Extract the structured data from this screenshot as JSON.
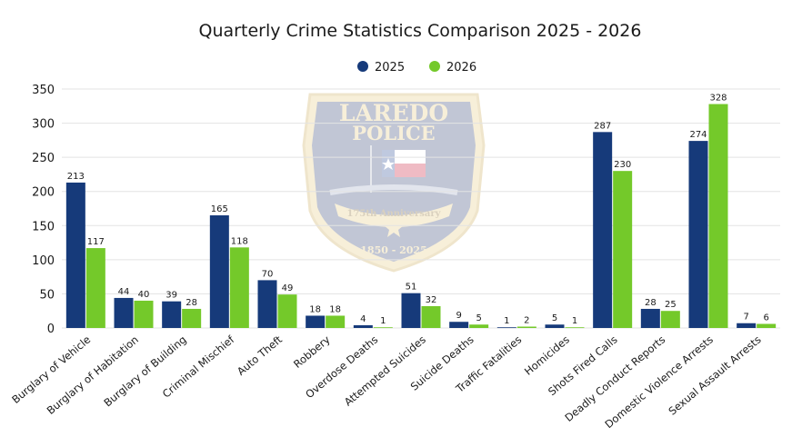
{
  "chart_data": {
    "type": "bar",
    "title": "Quarterly Crime Statistics Comparison 2025 - 2026",
    "xlabel": "",
    "ylabel": "",
    "ylim": [
      0,
      350
    ],
    "yticks": [
      0,
      50,
      100,
      150,
      200,
      250,
      300,
      350
    ],
    "grid": true,
    "legend_position": "top-center",
    "categories": [
      "Burglary of Vehicle",
      "Burglary of Habitation",
      "Burglary of Building",
      "Criminal Mischief",
      "Auto Theft",
      "Robbery",
      "Overdose Deaths",
      "Attempted Suicides",
      "Suicide Deaths",
      "Traffic Fatalities",
      "Homicides",
      "Shots Fired Calls",
      "Deadly Conduct Reports",
      "Domestic Violence Arrests",
      "Sexual Assault Arrests"
    ],
    "series": [
      {
        "name": "2025",
        "color": "#163a7a",
        "values": [
          213,
          44,
          39,
          165,
          70,
          18,
          4,
          51,
          9,
          1,
          5,
          287,
          28,
          274,
          7
        ]
      },
      {
        "name": "2026",
        "color": "#74c92a",
        "values": [
          117,
          40,
          28,
          118,
          49,
          18,
          1,
          32,
          5,
          2,
          1,
          230,
          25,
          328,
          6
        ]
      }
    ]
  },
  "watermark": {
    "line1": "LAREDO",
    "line2": "POLICE",
    "banner": "175th Anniversary",
    "years": "1850 - 2025"
  }
}
